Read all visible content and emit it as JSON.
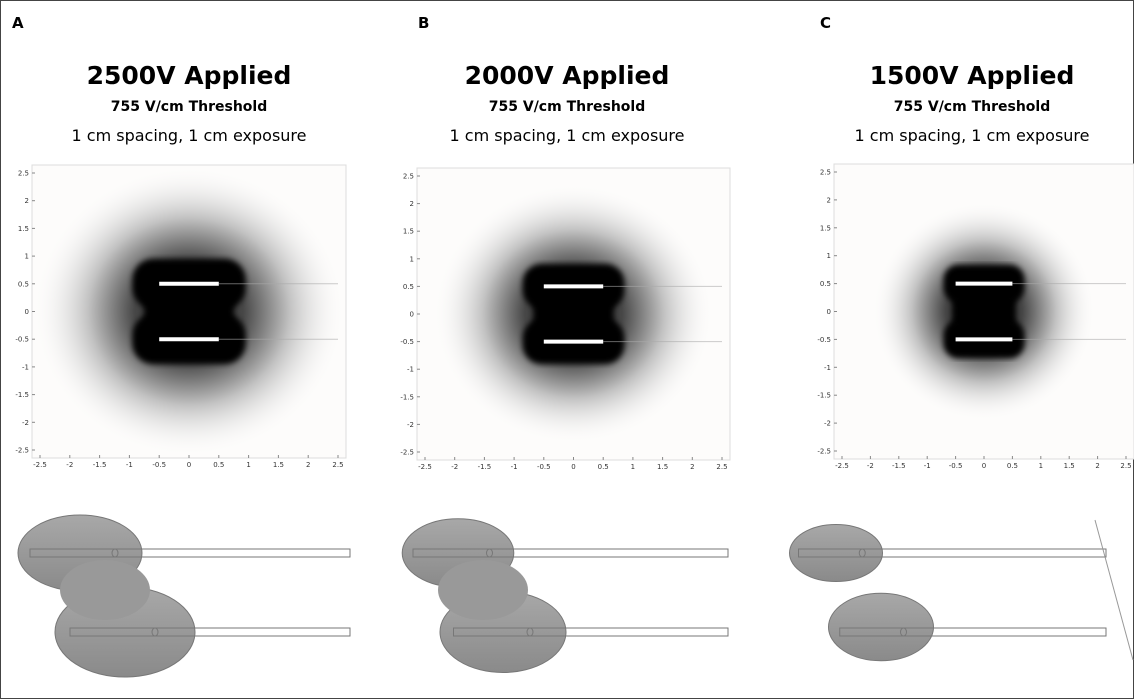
{
  "panels": [
    {
      "letter": "A",
      "title": "2500V Applied",
      "subtitle": "755 V/cm Threshold",
      "caption": "1 cm spacing, 1 cm exposure",
      "xticks": [
        -2.5,
        -2,
        -1.5,
        -1,
        -0.5,
        0,
        0.5,
        1,
        1.5,
        2,
        2.5
      ],
      "yticks": [
        2.5,
        2,
        1.5,
        1,
        0.5,
        0,
        -0.5,
        -1,
        -1.5,
        -2,
        -2.5
      ]
    },
    {
      "letter": "B",
      "title": "2000V Applied",
      "subtitle": "755 V/cm Threshold",
      "caption": "1 cm spacing, 1 cm exposure",
      "xticks": [
        -2.5,
        -2,
        -1.5,
        -1,
        -0.5,
        0,
        0.5,
        1,
        1.5,
        2,
        2.5
      ],
      "yticks": [
        2.5,
        2,
        1.5,
        1,
        0.5,
        0,
        -0.5,
        -1,
        -1.5,
        -2,
        -2.5
      ]
    },
    {
      "letter": "C",
      "title": "1500V Applied",
      "subtitle": "755 V/cm Threshold",
      "caption": "1 cm spacing, 1 cm exposure",
      "xticks": [
        -2.5,
        -2,
        -1.5,
        -1,
        -0.5,
        0,
        0.5,
        1,
        1.5,
        2,
        2.5
      ],
      "yticks": [
        2.5,
        2,
        1.5,
        1,
        0.5,
        0,
        -0.5,
        -1,
        -1.5,
        -2,
        -2.5
      ]
    }
  ]
}
